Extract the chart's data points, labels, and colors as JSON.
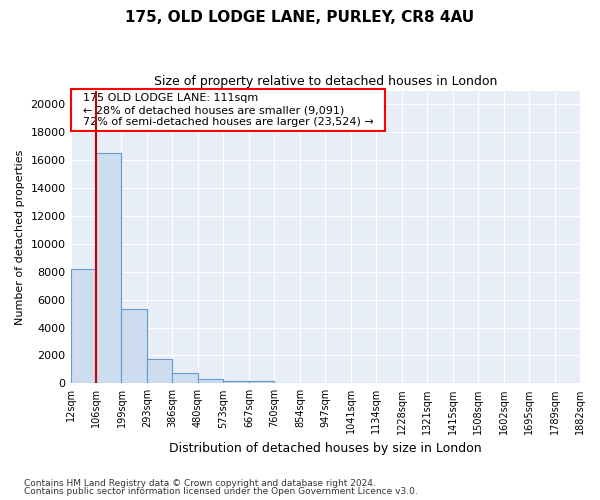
{
  "title1": "175, OLD LODGE LANE, PURLEY, CR8 4AU",
  "title2": "Size of property relative to detached houses in London",
  "xlabel": "Distribution of detached houses by size in London",
  "ylabel": "Number of detached properties",
  "annotation_line1": "175 OLD LODGE LANE: 111sqm",
  "annotation_line2": "← 28% of detached houses are smaller (9,091)",
  "annotation_line3": "72% of semi-detached houses are larger (23,524) →",
  "property_size_bin": 1,
  "bar_color": "#cddcee",
  "bar_edge_color": "#6699cc",
  "vline_color": "#cc0000",
  "plot_bg_color": "#e8eef8",
  "fig_bg_color": "#ffffff",
  "grid_color": "#ffffff",
  "footer1": "Contains HM Land Registry data © Crown copyright and database right 2024.",
  "footer2": "Contains public sector information licensed under the Open Government Licence v3.0.",
  "bins": [
    12,
    106,
    199,
    293,
    386,
    480,
    573,
    667,
    760,
    854,
    947,
    1041,
    1134,
    1228,
    1321,
    1415,
    1508,
    1602,
    1695,
    1789,
    1882
  ],
  "counts": [
    8200,
    16500,
    5300,
    1750,
    750,
    300,
    200,
    150,
    0,
    0,
    0,
    0,
    0,
    0,
    0,
    0,
    0,
    0,
    0,
    0
  ],
  "ylim": [
    0,
    21000
  ],
  "yticks": [
    0,
    2000,
    4000,
    6000,
    8000,
    10000,
    12000,
    14000,
    16000,
    18000,
    20000
  ]
}
